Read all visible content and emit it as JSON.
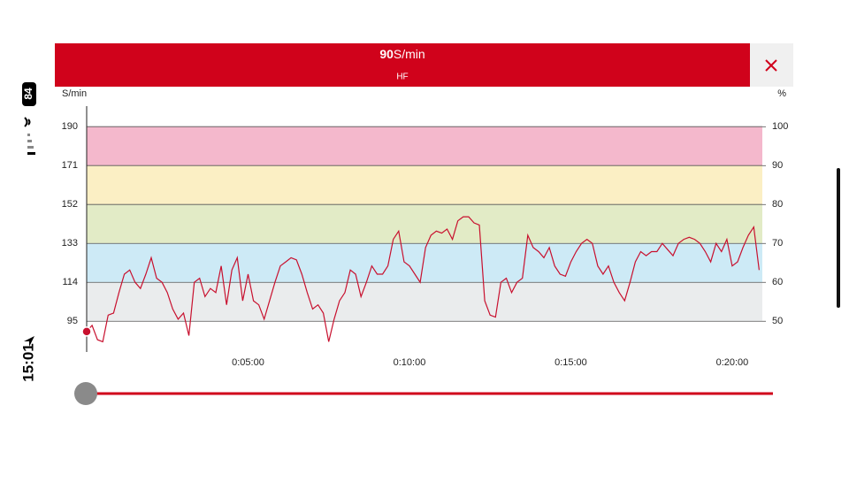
{
  "status_bar": {
    "time": "15:01",
    "battery": "84"
  },
  "header": {
    "value": 90,
    "unit": "S/min",
    "label": "HF"
  },
  "chart_data": {
    "type": "line",
    "y_label": "S/min",
    "y2_label": "%",
    "color": "#c8102e",
    "grid": true,
    "xlim": [
      0,
      1256
    ],
    "xticks": [
      {
        "value": 300,
        "label": "0:05:00"
      },
      {
        "value": 600,
        "label": "0:10:00"
      },
      {
        "value": 900,
        "label": "0:15:00"
      },
      {
        "value": 1200,
        "label": "0:20:00"
      }
    ],
    "ylim": [
      80,
      200
    ],
    "yticks": [
      95,
      114,
      133,
      152,
      171,
      190
    ],
    "y2lim": [
      42.1,
      105.3
    ],
    "y2ticks": [
      50,
      60,
      70,
      80,
      90,
      100
    ],
    "zones": [
      {
        "from": 95,
        "to": 114,
        "color": "#eaeced"
      },
      {
        "from": 114,
        "to": 133,
        "color": "#cdeaf6"
      },
      {
        "from": 133,
        "to": 152,
        "color": "#e2ebc6"
      },
      {
        "from": 152,
        "to": 171,
        "color": "#fbefc4"
      },
      {
        "from": 171,
        "to": 190,
        "color": "#f4b8cc"
      }
    ],
    "x": [
      0,
      10,
      20,
      30,
      40,
      50,
      60,
      70,
      80,
      90,
      100,
      110,
      120,
      130,
      140,
      150,
      160,
      170,
      180,
      190,
      200,
      210,
      220,
      230,
      240,
      250,
      260,
      270,
      280,
      290,
      300,
      310,
      320,
      330,
      340,
      350,
      360,
      370,
      380,
      390,
      400,
      410,
      420,
      430,
      440,
      450,
      460,
      470,
      480,
      490,
      500,
      510,
      520,
      530,
      540,
      550,
      560,
      570,
      580,
      590,
      600,
      610,
      620,
      630,
      640,
      650,
      660,
      670,
      680,
      690,
      700,
      710,
      720,
      730,
      740,
      750,
      760,
      770,
      780,
      790,
      800,
      810,
      820,
      830,
      840,
      850,
      860,
      870,
      880,
      890,
      900,
      910,
      920,
      930,
      940,
      950,
      960,
      970,
      980,
      990,
      1000,
      1010,
      1020,
      1030,
      1040,
      1050,
      1060,
      1070,
      1080,
      1090,
      1100,
      1110,
      1120,
      1130,
      1140,
      1150,
      1160,
      1170,
      1180,
      1190,
      1200,
      1210,
      1220,
      1230,
      1240,
      1250
    ],
    "values": [
      90,
      93,
      86,
      85,
      98,
      99,
      109,
      118,
      120,
      114,
      111,
      118,
      126,
      116,
      114,
      109,
      101,
      96,
      99,
      88,
      114,
      116,
      107,
      111,
      109,
      122,
      103,
      120,
      126,
      105,
      118,
      105,
      103,
      96,
      105,
      114,
      122,
      124,
      126,
      125,
      118,
      109,
      101,
      103,
      99,
      85,
      96,
      105,
      109,
      120,
      118,
      107,
      114,
      122,
      118,
      118,
      122,
      135,
      139,
      124,
      122,
      118,
      114,
      131,
      137,
      139,
      138,
      140,
      135,
      144,
      146,
      146,
      143,
      142,
      105,
      98,
      97,
      114,
      116,
      109,
      114,
      116,
      137,
      131,
      129,
      126,
      131,
      122,
      118,
      117,
      124,
      129,
      133,
      135,
      133,
      122,
      118,
      122,
      114,
      109,
      105,
      114,
      124,
      129,
      127,
      129,
      129,
      133,
      130,
      127,
      133,
      135,
      136,
      135,
      133,
      129,
      124,
      133,
      129,
      135,
      122,
      124,
      131,
      137,
      141,
      120
    ]
  }
}
